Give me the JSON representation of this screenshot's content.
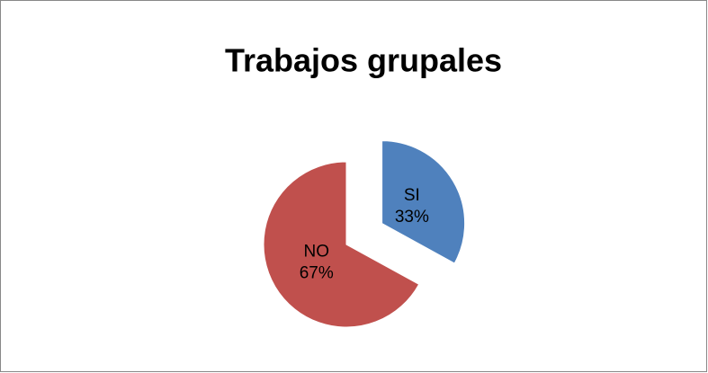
{
  "chart_data": {
    "type": "pie",
    "title": "Trabajos grupales",
    "categories": [
      "SI",
      "NO"
    ],
    "values": [
      33,
      67
    ],
    "value_labels": [
      "33%",
      "67%"
    ],
    "colors": [
      "#4f81bd",
      "#c0504d"
    ],
    "exploded": [
      true,
      false
    ]
  }
}
